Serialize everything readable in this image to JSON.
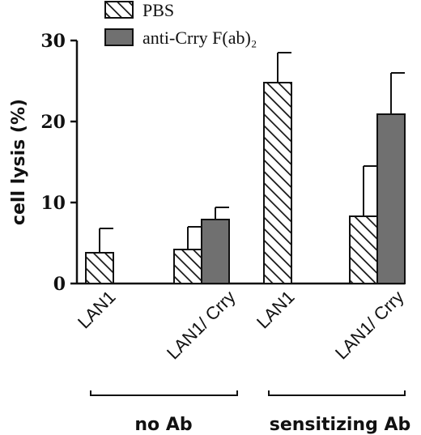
{
  "chart_data": {
    "type": "bar",
    "ylabel": "cell lysis (%)",
    "ylim": [
      0,
      30
    ],
    "yticks": [
      0,
      10,
      20,
      30
    ],
    "legend_position": "top",
    "categories": [
      "LAN1",
      "LAN1/ Crry",
      "LAN1",
      "LAN1/ Crry"
    ],
    "groups": [
      {
        "label": "no Ab",
        "categories": [
          0,
          1
        ]
      },
      {
        "label": "sensitizing Ab",
        "categories": [
          2,
          3
        ]
      }
    ],
    "series": [
      {
        "name": "PBS",
        "style": "hatched",
        "values": [
          3.8,
          4.2,
          24.8,
          8.3
        ],
        "errors": [
          3.0,
          2.8,
          3.7,
          6.2
        ]
      },
      {
        "name": "anti-Crry F(ab)₂",
        "style": "solid",
        "color": "#707070",
        "values": [
          null,
          7.9,
          null,
          20.9
        ],
        "errors": [
          null,
          1.5,
          null,
          5.1
        ]
      }
    ],
    "grid": false
  }
}
